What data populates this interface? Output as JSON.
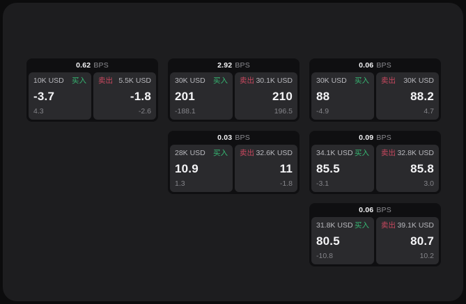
{
  "window": {
    "background_color": "#0c0c0d",
    "panel_color": "#1d1d1f",
    "card_color": "#0f0f11",
    "tile_color": "#2a2a2d"
  },
  "colors": {
    "buy_green": "#36b873",
    "sell_red": "#c9485f",
    "primary_text": "#f4f4f6",
    "muted_text": "#85858a",
    "label_text": "#b9b9be"
  },
  "cards": [
    {
      "column": 1,
      "bps_value": "0.62",
      "bps_unit": "BPS",
      "buy": {
        "size": "10K USD",
        "side_label": "买入",
        "price": "-3.7",
        "delta": "4.3"
      },
      "sell": {
        "side_label": "卖出",
        "size": "5.5K USD",
        "price": "-1.8",
        "delta": "-2.6"
      }
    },
    {
      "column": 2,
      "bps_value": "2.92",
      "bps_unit": "BPS",
      "buy": {
        "size": "30K USD",
        "side_label": "买入",
        "price": "201",
        "delta": "-188.1"
      },
      "sell": {
        "side_label": "卖出",
        "size": "30.1K USD",
        "price": "210",
        "delta": "196.5"
      }
    },
    {
      "column": 2,
      "bps_value": "0.03",
      "bps_unit": "BPS",
      "buy": {
        "size": "28K USD",
        "side_label": "买入",
        "price": "10.9",
        "delta": "1.3"
      },
      "sell": {
        "side_label": "卖出",
        "size": "32.6K USD",
        "price": "11",
        "delta": "-1.8"
      }
    },
    {
      "column": 3,
      "bps_value": "0.06",
      "bps_unit": "BPS",
      "buy": {
        "size": "30K USD",
        "side_label": "买入",
        "price": "88",
        "delta": "-4.9"
      },
      "sell": {
        "side_label": "卖出",
        "size": "30K USD",
        "price": "88.2",
        "delta": "4.7"
      }
    },
    {
      "column": 3,
      "bps_value": "0.09",
      "bps_unit": "BPS",
      "buy": {
        "size": "34.1K USD",
        "side_label": "买入",
        "price": "85.5",
        "delta": "-3.1"
      },
      "sell": {
        "side_label": "卖出",
        "size": "32.8K USD",
        "price": "85.8",
        "delta": "3.0"
      }
    },
    {
      "column": 3,
      "bps_value": "0.06",
      "bps_unit": "BPS",
      "buy": {
        "size": "31.8K USD",
        "side_label": "买入",
        "price": "80.5",
        "delta": "-10.8"
      },
      "sell": {
        "side_label": "卖出",
        "size": "39.1K USD",
        "price": "80.7",
        "delta": "10.2"
      }
    }
  ]
}
